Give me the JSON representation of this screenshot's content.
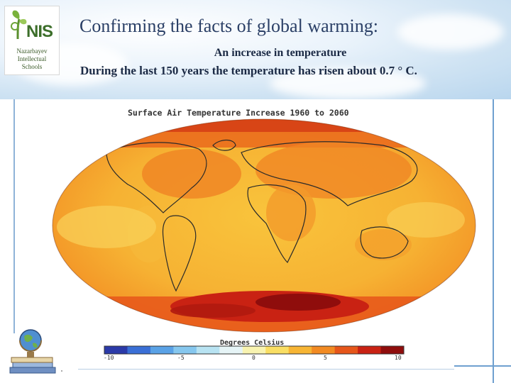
{
  "slide": {
    "title": "Confirming the facts of global warming:",
    "subtitle_line1": "An increase in temperature",
    "subtitle_line2": "During the last 150 years the temperature has risen about 0.7 ° C."
  },
  "logo": {
    "mark": "NIS",
    "line1": "Nazarbayev",
    "line2": "Intellectual",
    "line3": "Schools"
  },
  "map": {
    "title": "Surface Air Temperature Increase 1960 to 2060",
    "colorbar_label": "Degrees Celsius",
    "colorbar_ticks": [
      "-10",
      "-5",
      "0",
      "5",
      "10"
    ],
    "colorbar_colors": [
      "#2b3aa8",
      "#3a6fd6",
      "#5aa2e6",
      "#86c7ee",
      "#b8e3f2",
      "#e6f4f6",
      "#f8f3b0",
      "#f9de63",
      "#f7b534",
      "#f28a22",
      "#e6561a",
      "#c92213",
      "#8f0d0c"
    ]
  },
  "decor": {
    "globe_icon": "globe-with-books-icon"
  }
}
